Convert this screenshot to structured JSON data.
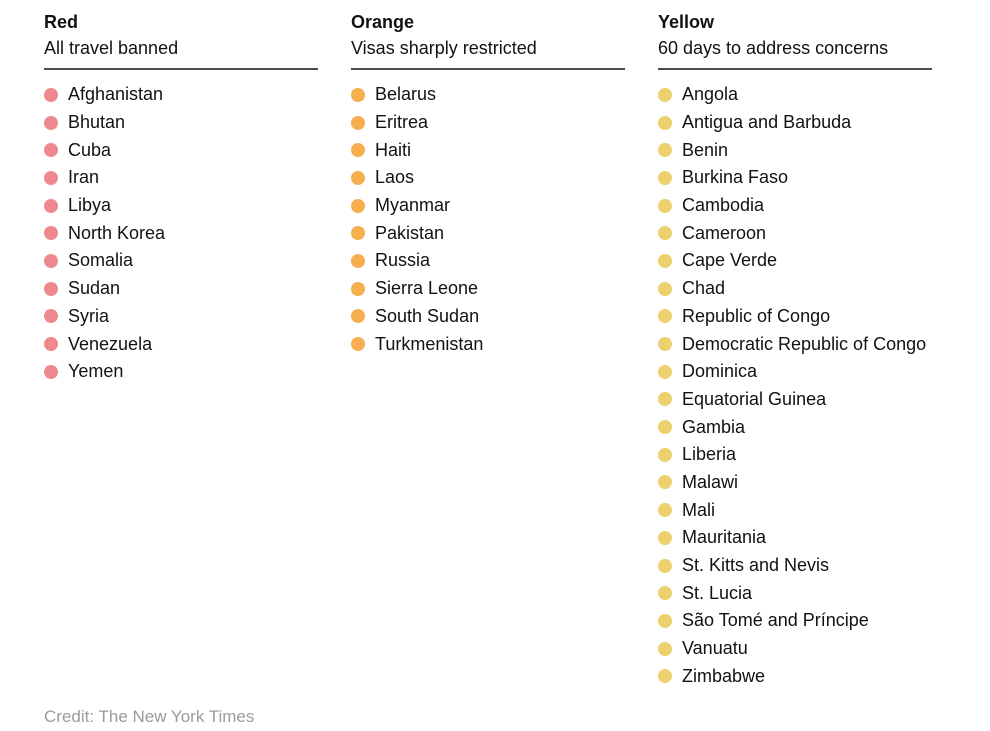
{
  "chart_data": {
    "type": "table",
    "title": "",
    "categories": [
      "Red",
      "Orange",
      "Yellow"
    ],
    "columns": [
      {
        "title": "Red",
        "subtitle": "All travel banned",
        "dot_color": "#ee8a8e",
        "countries": [
          "Afghanistan",
          "Bhutan",
          "Cuba",
          "Iran",
          "Libya",
          "North Korea",
          "Somalia",
          "Sudan",
          "Syria",
          "Venezuela",
          "Yemen"
        ]
      },
      {
        "title": "Orange",
        "subtitle": "Visas sharply restricted",
        "dot_color": "#f6ae4f",
        "countries": [
          "Belarus",
          "Eritrea",
          "Haiti",
          "Laos",
          "Myanmar",
          "Pakistan",
          "Russia",
          "Sierra Leone",
          "South Sudan",
          "Turkmenistan"
        ]
      },
      {
        "title": "Yellow",
        "subtitle": "60 days to address concerns",
        "dot_color": "#edd16e",
        "countries": [
          "Angola",
          "Antigua and Barbuda",
          "Benin",
          "Burkina Faso",
          "Cambodia",
          "Cameroon",
          "Cape Verde",
          "Chad",
          "Republic of Congo",
          "Democratic Republic of Congo",
          "Dominica",
          "Equatorial Guinea",
          "Gambia",
          "Liberia",
          "Malawi",
          "Mali",
          "Mauritania",
          "St. Kitts and Nevis",
          "St. Lucia",
          "São Tomé and Príncipe",
          "Vanuatu",
          "Zimbabwe"
        ]
      }
    ],
    "grid": false,
    "legend_position": "none"
  },
  "credit": "Credit: The New York Times",
  "colors": {
    "background": "#ffffff",
    "text": "#121212",
    "rule": "#4d4d4d",
    "credit_text": "#9b9b9b"
  }
}
